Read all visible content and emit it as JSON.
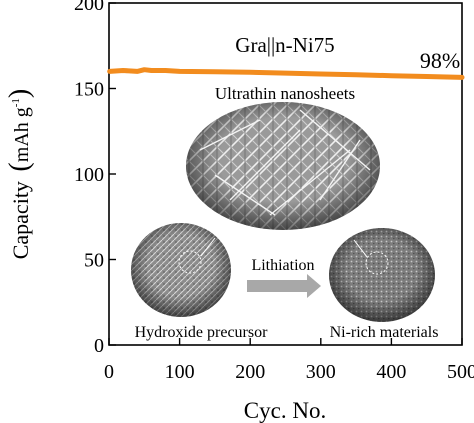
{
  "chart_data": {
    "type": "line",
    "title": "",
    "xlabel": "Cyc. No.",
    "ylabel_main": "Capacity",
    "ylabel_unit": "mAh g",
    "ylabel_sup": "-1",
    "xlim": [
      0,
      500
    ],
    "ylim": [
      0,
      200
    ],
    "x_ticks": [
      0,
      100,
      200,
      300,
      400,
      500
    ],
    "y_ticks": [
      0,
      50,
      100,
      150,
      200
    ],
    "grid": false,
    "series": [
      {
        "name": "Gra||n-Ni75",
        "color": "#f28c1e",
        "x": [
          1,
          20,
          40,
          50,
          60,
          80,
          100,
          150,
          200,
          250,
          300,
          350,
          400,
          450,
          500
        ],
        "y": [
          160,
          160.5,
          160,
          161,
          160.5,
          160.5,
          160,
          159.8,
          159.5,
          159,
          158.5,
          158,
          157.5,
          157,
          156.5
        ]
      }
    ],
    "annotations": {
      "series_label": "Gra||n-Ni75",
      "retention": "98%",
      "inset_top_label": "Ultrathin nanosheets",
      "inset_left_label": "Hydroxide precursor",
      "inset_right_label": "Ni-rich materials",
      "arrow_label": "Lithiation"
    }
  }
}
